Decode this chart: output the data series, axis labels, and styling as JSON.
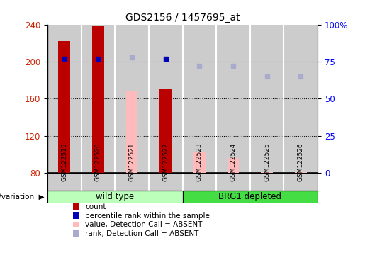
{
  "title": "GDS2156 / 1457695_at",
  "samples": [
    "GSM122519",
    "GSM122520",
    "GSM122521",
    "GSM122522",
    "GSM122523",
    "GSM122524",
    "GSM122525",
    "GSM122526"
  ],
  "bar_bottom": 80,
  "ylim_left": [
    80,
    240
  ],
  "ylim_right": [
    0,
    100
  ],
  "yticks_left": [
    80,
    120,
    160,
    200,
    240
  ],
  "yticks_right": [
    0,
    25,
    50,
    75,
    100
  ],
  "count_present": {
    "indices": [
      0,
      1,
      3
    ],
    "values": [
      222,
      238,
      170
    ],
    "color": "#bb0000"
  },
  "count_absent": {
    "indices": [
      2,
      4,
      5,
      6,
      7
    ],
    "values": [
      168,
      103,
      96,
      81,
      81
    ],
    "color": "#ffbbbb"
  },
  "rank_present": {
    "indices": [
      0,
      1,
      3
    ],
    "values": [
      77,
      77,
      77
    ],
    "color": "#0000bb"
  },
  "rank_absent": {
    "indices": [
      2,
      4,
      5,
      6,
      7
    ],
    "values": [
      78,
      72,
      72,
      65,
      65
    ],
    "color": "#aaaacc"
  },
  "grid_lines": [
    120,
    160,
    200
  ],
  "col_bg_color": "#cccccc",
  "col_sep_color": "#ffffff",
  "wildtype_color": "#bbffbb",
  "brg1_color": "#44dd44",
  "bar_width": 0.35,
  "legend_items": [
    {
      "color": "#bb0000",
      "label": "count"
    },
    {
      "color": "#0000bb",
      "label": "percentile rank within the sample"
    },
    {
      "color": "#ffbbbb",
      "label": "value, Detection Call = ABSENT"
    },
    {
      "color": "#aaaacc",
      "label": "rank, Detection Call = ABSENT"
    }
  ]
}
